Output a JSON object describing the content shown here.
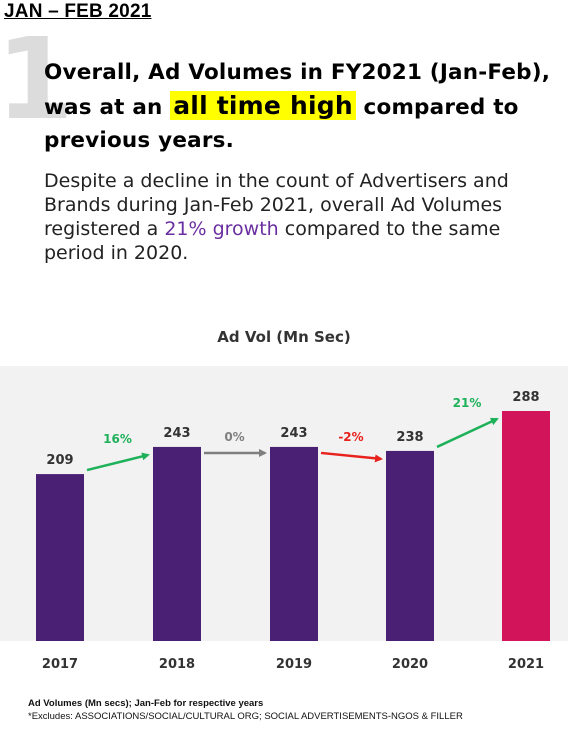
{
  "period": "JAN – FEB 2021",
  "number": "1",
  "headline": {
    "part1": "Overall, Ad Volumes in FY2021 (Jan-Feb), was at an ",
    "highlight": "all time high",
    "part2": " compared to previous years."
  },
  "description": {
    "part1": "Despite a decline in the count of Advertisers and Brands during Jan-Feb 2021, overall Ad Volumes registered a ",
    "growth": "21% growth",
    "part2": " compared to the same period in 2020."
  },
  "colors": {
    "bar": "#4a2075",
    "highlight_bar": "#d2145a",
    "up_arrow": "#1fb15a",
    "flat_arrow": "#7f7f7f",
    "down_arrow": "#e8211d",
    "growth_text": "#6a2fa1"
  },
  "chart_data": {
    "type": "bar",
    "title": "Ad Vol (Mn Sec)",
    "categories": [
      "2017",
      "2018",
      "2019",
      "2020",
      "2021"
    ],
    "values": [
      209,
      243,
      243,
      238,
      288
    ],
    "ylim": [
      0,
      288
    ],
    "grid": false,
    "changes": [
      {
        "label": "16%",
        "direction": "up"
      },
      {
        "label": "0%",
        "direction": "flat"
      },
      {
        "label": "-2%",
        "direction": "down"
      },
      {
        "label": "21%",
        "direction": "up"
      }
    ]
  },
  "footnotes": {
    "line1": "Ad Volumes (Mn secs); Jan-Feb for respective years",
    "line2": "*Excludes: ASSOCIATIONS/SOCIAL/CULTURAL ORG; SOCIAL ADVERTISEMENTS-NGOS & FILLER"
  }
}
